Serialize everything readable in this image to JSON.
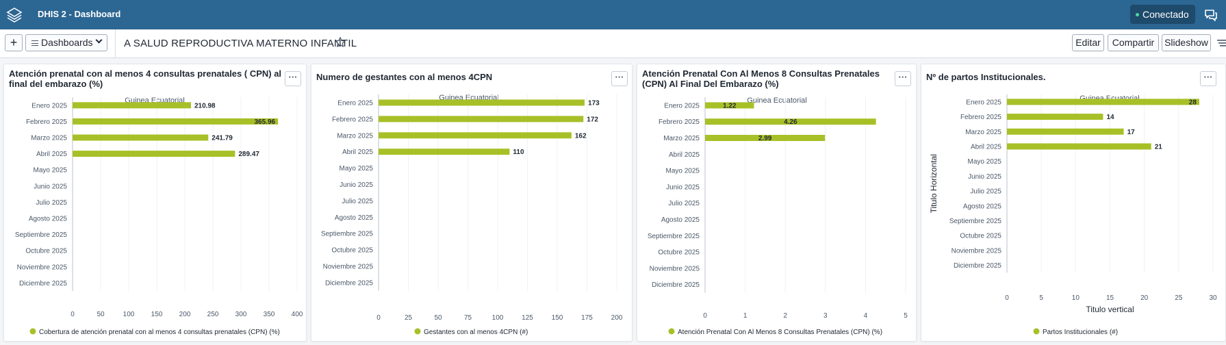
{
  "header": {
    "app_title": "DHIS 2 - Dashboard",
    "status": "Conectado",
    "status_color": "#4ad9a0",
    "icons": [
      "dhis2-logo-icon",
      "messages-icon"
    ]
  },
  "controls": {
    "add_label": "+",
    "dashboards_label": "Dashboards",
    "dashboard_title": "A SALUD REPRODUCTIVA MATERNO INFANTIL",
    "edit_label": "Editar",
    "share_label": "Compartir",
    "slideshow_label": "Slideshow"
  },
  "cards": [
    {
      "title": "Atención prenatal con al menos 4 consultas prenatales ( CPN) al final del embarazo (%)",
      "more_label": "···"
    },
    {
      "title": "Numero de gestantes con al menos 4CPN",
      "more_label": "···"
    },
    {
      "title": "Atención Prenatal Con Al Menos 8 Consultas Prenatales (CPN) Al Final Del Embarazo (%)",
      "more_label": "···"
    },
    {
      "title": "Nº de partos Institucionales.",
      "more_label": "···"
    }
  ],
  "chart_data": [
    {
      "type": "bar",
      "orientation": "horizontal",
      "subtitle": "Guinea Ecuatorial",
      "categories": [
        "Enero 2025",
        "Febrero 2025",
        "Marzo 2025",
        "Abril 2025",
        "Mayo 2025",
        "Junio 2025",
        "Julio 2025",
        "Agosto 2025",
        "Septiembre 2025",
        "Octubre 2025",
        "Noviembre 2025",
        "Diciembre 2025"
      ],
      "series": [
        {
          "name": "Cobertura de atención prenatal con al menos 4 consultas prenatales (CPN) (%)",
          "values": [
            210.98,
            365.96,
            241.79,
            289.47,
            null,
            null,
            null,
            null,
            null,
            null,
            null,
            null
          ],
          "value_labels": [
            "210.98",
            "365.96",
            "241.79",
            "289.47"
          ]
        }
      ],
      "xlim": [
        0,
        400
      ],
      "ticks": [
        "0",
        "50",
        "100",
        "150",
        "200",
        "250",
        "300",
        "350",
        "400"
      ],
      "color": "#a8c027",
      "grid": true,
      "legend_position": "bottom"
    },
    {
      "type": "bar",
      "orientation": "horizontal",
      "subtitle": "Guinea Ecuatorial",
      "categories": [
        "Enero 2025",
        "Febrero 2025",
        "Marzo 2025",
        "Abril 2025",
        "Mayo 2025",
        "Junio 2025",
        "Julio 2025",
        "Agosto 2025",
        "Septiembre 2025",
        "Octubre 2025",
        "Noviembre 2025",
        "Diciembre 2025"
      ],
      "series": [
        {
          "name": "Gestantes con al menos 4CPN (#)",
          "values": [
            173,
            172,
            162,
            110,
            null,
            null,
            null,
            null,
            null,
            null,
            null,
            null
          ],
          "value_labels": [
            "173",
            "172",
            "162",
            "110"
          ]
        }
      ],
      "xlim": [
        0,
        200
      ],
      "ticks": [
        "0",
        "25",
        "50",
        "75",
        "100",
        "125",
        "150",
        "175",
        "200"
      ],
      "color": "#a8c027",
      "grid": true,
      "legend_position": "bottom"
    },
    {
      "type": "bar",
      "orientation": "horizontal",
      "subtitle": "Guinea Ecuatorial",
      "categories": [
        "Enero 2025",
        "Febrero 2025",
        "Marzo 2025",
        "Abril 2025",
        "Mayo 2025",
        "Junio 2025",
        "Julio 2025",
        "Agosto 2025",
        "Septiembre 2025",
        "Octubre 2025",
        "Noviembre 2025",
        "Diciembre 2025"
      ],
      "series": [
        {
          "name": "Atención Prenatal Con Al Menos 8 Consultas Prenatales (CPN) (%)",
          "values": [
            1.22,
            4.26,
            2.99,
            null,
            null,
            null,
            null,
            null,
            null,
            null,
            null,
            null
          ],
          "value_labels": [
            "1.22",
            "4.26",
            "2.99"
          ]
        }
      ],
      "xlim": [
        0,
        5
      ],
      "ticks": [
        "0",
        "1",
        "2",
        "3",
        "4",
        "5"
      ],
      "color": "#a8c027",
      "grid": true,
      "legend_position": "bottom"
    },
    {
      "type": "bar",
      "orientation": "horizontal",
      "subtitle": "Guinea Ecuatorial",
      "categories": [
        "Enero 2025",
        "Febrero 2025",
        "Marzo 2025",
        "Abril 2025",
        "Mayo 2025",
        "Junio 2025",
        "Julio 2025",
        "Agosto 2025",
        "Septiembre 2025",
        "Octubre 2025",
        "Noviembre 2025",
        "Diciembre 2025"
      ],
      "series": [
        {
          "name": "Partos Institucionales (#)",
          "values": [
            28,
            14,
            17,
            21,
            null,
            null,
            null,
            null,
            null,
            null,
            null,
            null
          ],
          "value_labels": [
            "28",
            "14",
            "17",
            "21"
          ]
        }
      ],
      "xlim": [
        0,
        30
      ],
      "ticks": [
        "0",
        "5",
        "10",
        "15",
        "20",
        "25",
        "30"
      ],
      "xlabel": "Titulo vertical",
      "ylabel": "Titulo Horizontal",
      "color": "#a8c027",
      "grid": true,
      "legend_position": "bottom"
    }
  ]
}
